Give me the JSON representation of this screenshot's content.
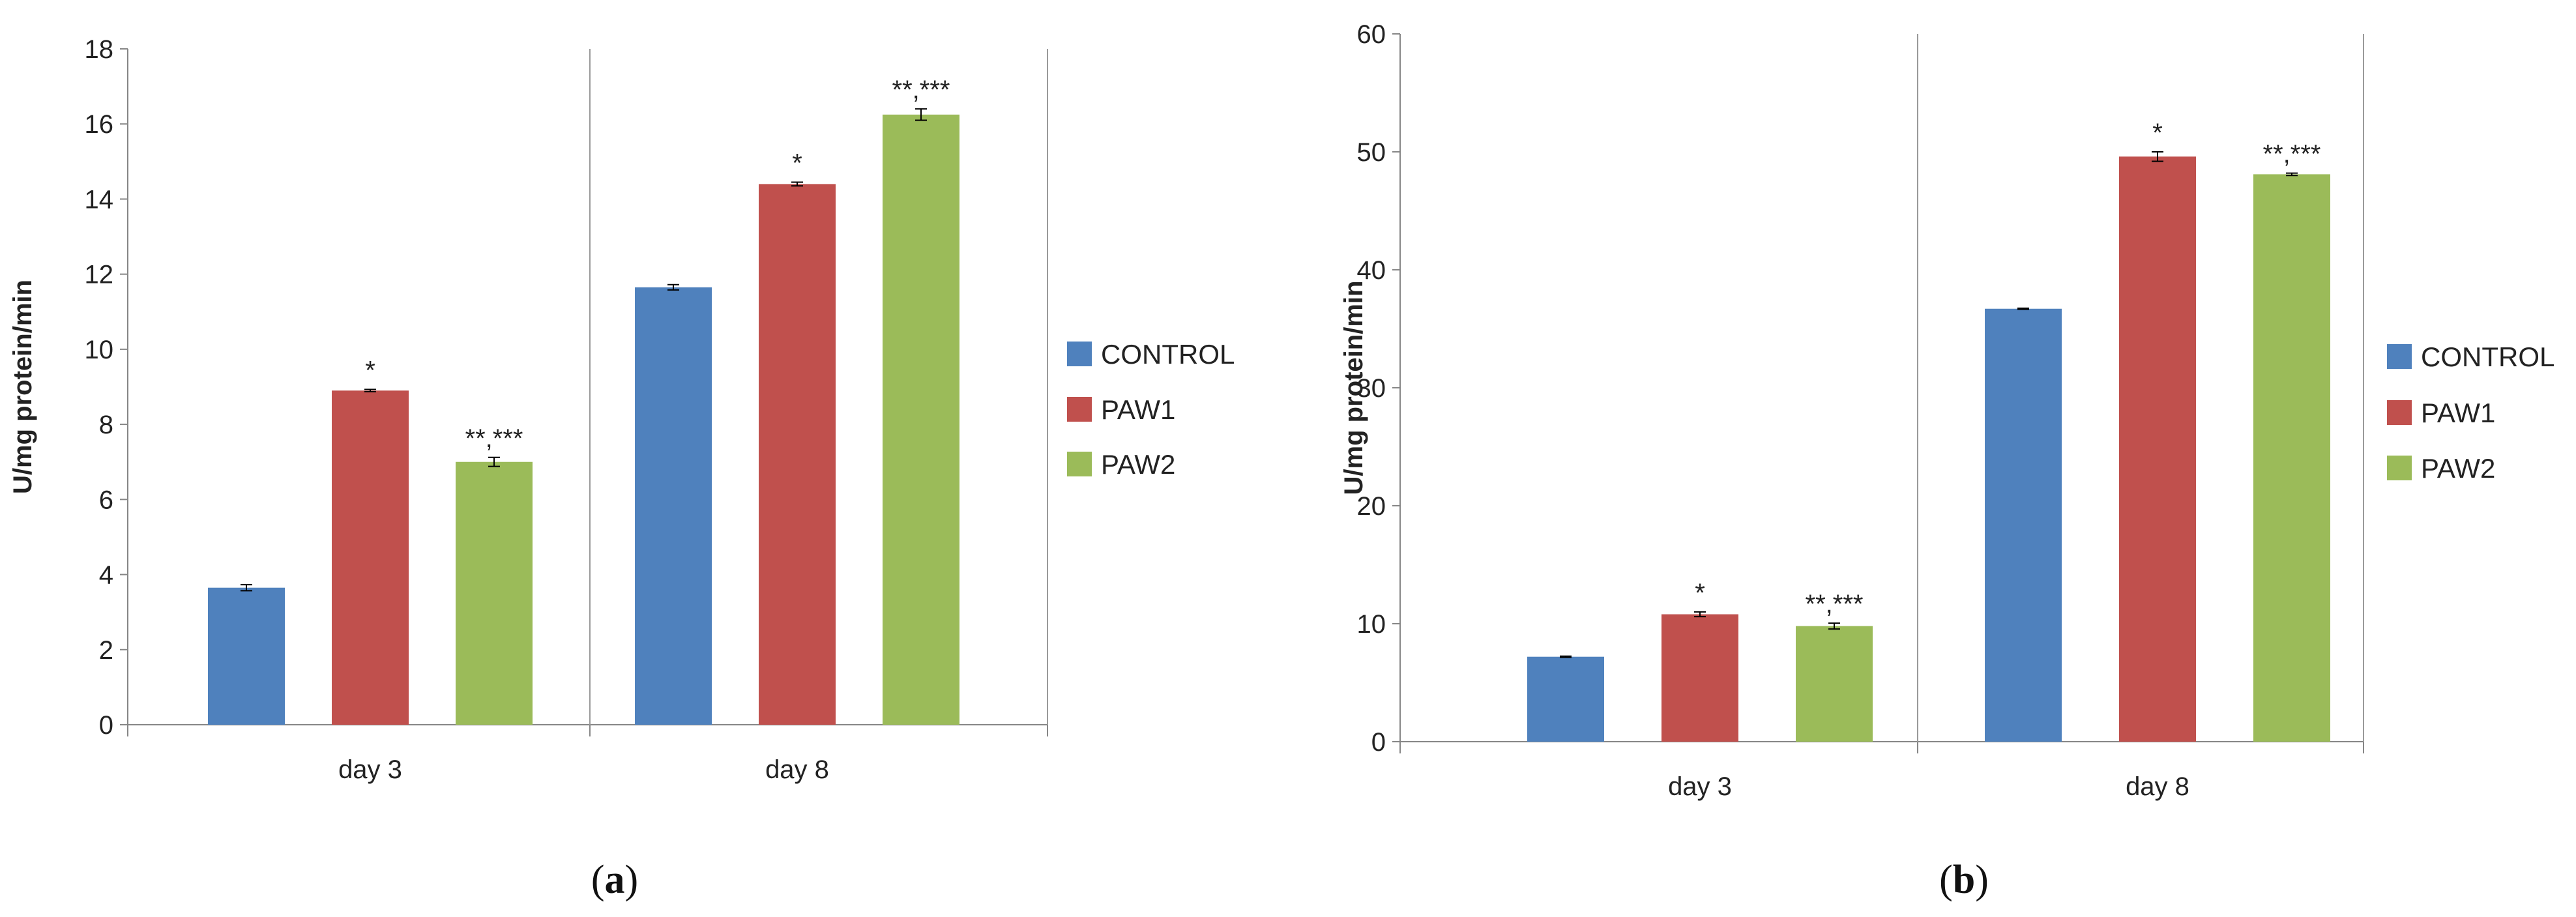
{
  "chart_data": [
    {
      "type": "bar",
      "panel_label": "a",
      "panel_label_open": "(",
      "panel_label_close": ")",
      "ylabel": "U/mg protein/min",
      "ylim": [
        0,
        18
      ],
      "yticks": [
        0,
        2,
        4,
        6,
        8,
        10,
        12,
        14,
        16,
        18
      ],
      "categories": [
        "day 3",
        "day 8"
      ],
      "series": [
        {
          "name": "CONTROL",
          "color": "#4F81BD",
          "values": [
            3.65,
            11.65
          ],
          "errors": [
            0.08,
            0.07
          ],
          "annotations": [
            "",
            ""
          ]
        },
        {
          "name": "PAW1",
          "color": "#C0504D",
          "values": [
            8.9,
            14.4
          ],
          "errors": [
            0.03,
            0.05
          ],
          "annotations": [
            "*",
            "*"
          ]
        },
        {
          "name": "PAW2",
          "color": "#9BBB59",
          "values": [
            7.0,
            16.25
          ],
          "errors": [
            0.12,
            0.15
          ],
          "annotations": [
            "**,***",
            "**,***"
          ]
        }
      ],
      "legend_position": "right"
    },
    {
      "type": "bar",
      "panel_label": "b",
      "panel_label_open": "(",
      "panel_label_close": ")",
      "ylabel": "U/mg protein/min",
      "ylim": [
        0,
        60
      ],
      "yticks": [
        0,
        10,
        20,
        30,
        40,
        50,
        60
      ],
      "categories": [
        "day 3",
        "day 8"
      ],
      "series": [
        {
          "name": "CONTROL",
          "color": "#4F81BD",
          "values": [
            7.2,
            36.7
          ],
          "errors": [
            0.05,
            0.05
          ],
          "annotations": [
            "",
            ""
          ]
        },
        {
          "name": "PAW1",
          "color": "#C0504D",
          "values": [
            10.8,
            49.6
          ],
          "errors": [
            0.2,
            0.4
          ],
          "annotations": [
            "*",
            "*"
          ]
        },
        {
          "name": "PAW2",
          "color": "#9BBB59",
          "values": [
            9.8,
            48.1
          ],
          "errors": [
            0.25,
            0.1
          ],
          "annotations": [
            "**,***",
            "**,***"
          ]
        }
      ],
      "legend_position": "right"
    }
  ]
}
